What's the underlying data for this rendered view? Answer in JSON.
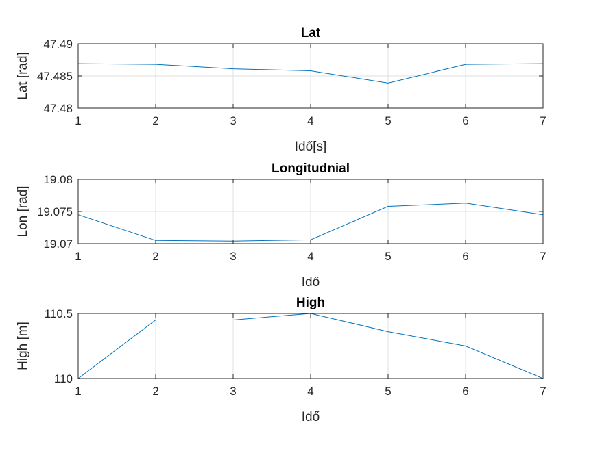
{
  "chart_data": [
    {
      "type": "line",
      "title": "Lat",
      "xlabel": "Idő[s]",
      "ylabel": "Lat [rad]",
      "x": [
        1,
        2,
        3,
        4,
        5,
        6,
        7
      ],
      "series": [
        {
          "values": [
            47.4869,
            47.4868,
            47.4861,
            47.4858,
            47.4839,
            47.4868,
            47.4869
          ]
        }
      ],
      "xlim": [
        1,
        7
      ],
      "ylim": [
        47.48,
        47.49
      ],
      "xticks": [
        "1",
        "2",
        "3",
        "4",
        "5",
        "6",
        "7"
      ],
      "yticks": [
        "47.48",
        "47.485",
        "47.49"
      ],
      "grid": true,
      "color": "#0072bd"
    },
    {
      "type": "line",
      "title": "Longitudnial",
      "xlabel": "Idő",
      "ylabel": "Lon [rad]",
      "x": [
        1,
        2,
        3,
        4,
        5,
        6,
        7
      ],
      "series": [
        {
          "values": [
            19.0745,
            19.0705,
            19.0704,
            19.0706,
            19.0758,
            19.0763,
            19.0745
          ]
        }
      ],
      "xlim": [
        1,
        7
      ],
      "ylim": [
        19.07,
        19.08
      ],
      "xticks": [
        "1",
        "2",
        "3",
        "4",
        "5",
        "6",
        "7"
      ],
      "yticks": [
        "19.07",
        "19.075",
        "19.08"
      ],
      "grid": true,
      "color": "#0072bd"
    },
    {
      "type": "line",
      "title": "High",
      "xlabel": "Idő",
      "ylabel": "High [m]",
      "x": [
        1,
        2,
        3,
        4,
        5,
        6,
        7
      ],
      "series": [
        {
          "values": [
            110.0,
            110.45,
            110.45,
            110.5,
            110.36,
            110.25,
            110.0
          ]
        }
      ],
      "xlim": [
        1,
        7
      ],
      "ylim": [
        110,
        110.5
      ],
      "xticks": [
        "1",
        "2",
        "3",
        "4",
        "5",
        "6",
        "7"
      ],
      "yticks": [
        "110",
        "110.5"
      ],
      "grid": true,
      "color": "#0072bd"
    }
  ]
}
